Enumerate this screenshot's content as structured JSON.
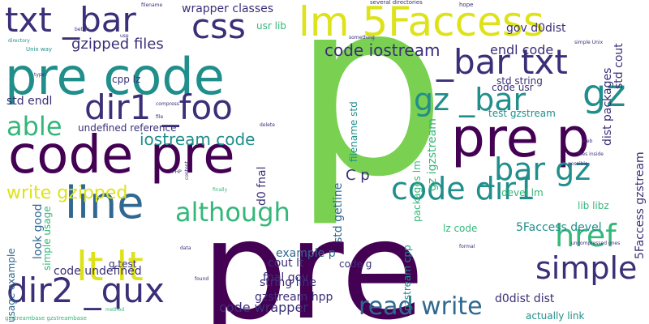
{
  "colors": {
    "background": "#ffffff",
    "dark_purple": "#440154",
    "indigo": "#3b2f78",
    "blue": "#2f6890",
    "teal": "#208f8b",
    "green": "#35b779",
    "lime": "#7ad151",
    "yellow": "#dde318"
  },
  "words": [
    {
      "text": "p"
    },
    {
      "text": "pre"
    },
    {
      "text": "code pre"
    },
    {
      "text": "pre code"
    },
    {
      "text": "pre p"
    },
    {
      "text": "lm 5Faccess"
    },
    {
      "text": "txt _bar"
    },
    {
      "text": "css"
    },
    {
      "text": "dir1 _foo"
    },
    {
      "text": "_bar txt"
    },
    {
      "text": "gz"
    },
    {
      "text": "line"
    },
    {
      "text": "lt lt"
    },
    {
      "text": "code dir1"
    },
    {
      "text": "dir2 _qux"
    },
    {
      "text": "_bar gz"
    },
    {
      "text": "gz _bar"
    },
    {
      "text": "href"
    },
    {
      "text": "simple"
    },
    {
      "text": "able"
    },
    {
      "text": "although"
    },
    {
      "text": "read write"
    },
    {
      "text": "write gzipped"
    },
    {
      "text": "iostream code"
    },
    {
      "text": "code iostream"
    },
    {
      "text": "gzipped files"
    },
    {
      "text": "wrapper classes"
    },
    {
      "text": "usr lib"
    },
    {
      "text": "cpp lz"
    },
    {
      "text": "std endl"
    },
    {
      "text": "undefined reference"
    },
    {
      "text": "endl code"
    },
    {
      "text": "gov d0dist"
    },
    {
      "text": "code usr"
    },
    {
      "text": "std string"
    },
    {
      "text": "std cout"
    },
    {
      "text": "dist packages"
    },
    {
      "text": "test gzstream"
    },
    {
      "text": "filename std"
    },
    {
      "text": "packages lm"
    },
    {
      "text": "gz igzstream"
    },
    {
      "text": "C p"
    },
    {
      "text": "devel lm"
    },
    {
      "text": "lib libz"
    },
    {
      "text": "5Faccess gzstream"
    },
    {
      "text": "5Faccess devel"
    },
    {
      "text": "lz code"
    },
    {
      "text": "d0dist dist"
    },
    {
      "text": "actually link"
    },
    {
      "text": "std getline"
    },
    {
      "text": "gzstream cpp"
    },
    {
      "text": "code g"
    },
    {
      "text": "d0 fnal"
    },
    {
      "text": "cout lt"
    },
    {
      "text": "fnal gov"
    },
    {
      "text": "example p"
    },
    {
      "text": "string line"
    },
    {
      "text": "gzstream hpp"
    },
    {
      "text": "code wrapper"
    },
    {
      "text": "code undefined"
    },
    {
      "text": "g test"
    },
    {
      "text": "look good"
    },
    {
      "text": "simple usage"
    },
    {
      "text": "usage example"
    },
    {
      "text": "finally"
    },
    {
      "text": "several directories"
    },
    {
      "text": "hope"
    },
    {
      "text": "Unix way"
    },
    {
      "text": "simple Unix"
    },
    {
      "text": "compress"
    },
    {
      "text": "filename"
    },
    {
      "text": "something"
    },
    {
      "text": "directory"
    },
    {
      "text": "use"
    },
    {
      "text": "files inside"
    },
    {
      "text": "uncompressed ones"
    },
    {
      "text": "gzstreambase gzstreambase"
    },
    {
      "text": "web"
    },
    {
      "text": "PHP"
    },
    {
      "text": "content"
    },
    {
      "text": "file"
    },
    {
      "text": "data"
    },
    {
      "text": "method"
    },
    {
      "text": "delete"
    },
    {
      "text": "formal"
    },
    {
      "text": "better"
    },
    {
      "text": "type"
    },
    {
      "text": "possible"
    },
    {
      "text": "found"
    }
  ]
}
